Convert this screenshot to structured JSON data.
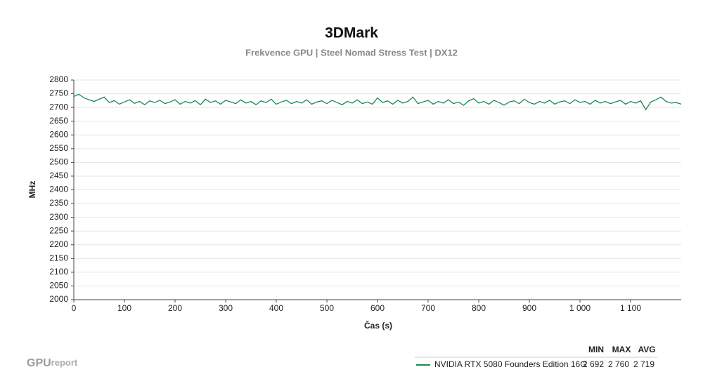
{
  "chart_data": {
    "type": "line",
    "title": "3DMark",
    "subtitle": "Frekvence GPU | Steel Nomad Stress Test | DX12",
    "x_label": "Čas (s)",
    "y_label": "MHz",
    "x": [
      0,
      10,
      20,
      30,
      40,
      50,
      60,
      70,
      80,
      90,
      100,
      110,
      120,
      130,
      140,
      150,
      160,
      170,
      180,
      190,
      200,
      210,
      220,
      230,
      240,
      250,
      260,
      270,
      280,
      290,
      300,
      310,
      320,
      330,
      340,
      350,
      360,
      370,
      380,
      390,
      400,
      410,
      420,
      430,
      440,
      450,
      460,
      470,
      480,
      490,
      500,
      510,
      520,
      530,
      540,
      550,
      560,
      570,
      580,
      590,
      600,
      610,
      620,
      630,
      640,
      650,
      660,
      670,
      680,
      690,
      700,
      710,
      720,
      730,
      740,
      750,
      760,
      770,
      780,
      790,
      800,
      810,
      820,
      830,
      840,
      850,
      860,
      870,
      880,
      890,
      900,
      910,
      920,
      930,
      940,
      950,
      960,
      970,
      980,
      990,
      1000,
      1010,
      1020,
      1030,
      1040,
      1050,
      1060,
      1070,
      1080,
      1090,
      1100,
      1110,
      1120,
      1130,
      1140,
      1150,
      1160,
      1170,
      1180,
      1190,
      1200
    ],
    "series": [
      {
        "name": "NVIDIA RTX 5080 Founders Edition 16G",
        "color": "#1a8a4f",
        "values": [
          2740,
          2748,
          2735,
          2728,
          2722,
          2730,
          2738,
          2718,
          2725,
          2712,
          2720,
          2728,
          2715,
          2722,
          2710,
          2724,
          2718,
          2726,
          2714,
          2720,
          2728,
          2712,
          2722,
          2716,
          2725,
          2710,
          2730,
          2718,
          2724,
          2712,
          2726,
          2720,
          2714,
          2728,
          2716,
          2722,
          2710,
          2724,
          2718,
          2730,
          2712,
          2720,
          2726,
          2714,
          2722,
          2716,
          2728,
          2712,
          2720,
          2724,
          2714,
          2726,
          2718,
          2710,
          2722,
          2716,
          2728,
          2714,
          2720,
          2712,
          2735,
          2718,
          2724,
          2712,
          2726,
          2716,
          2722,
          2738,
          2714,
          2720,
          2726,
          2712,
          2722,
          2716,
          2728,
          2714,
          2720,
          2708,
          2724,
          2732,
          2716,
          2722,
          2712,
          2726,
          2718,
          2708,
          2720,
          2724,
          2714,
          2730,
          2718,
          2712,
          2722,
          2716,
          2726,
          2712,
          2720,
          2724,
          2714,
          2728,
          2718,
          2722,
          2712,
          2726,
          2716,
          2722,
          2714,
          2720,
          2726,
          2712,
          2722,
          2716,
          2724,
          2692,
          2720,
          2728,
          2738,
          2722,
          2716,
          2718,
          2712
        ],
        "stats": [
          {
            "value": 2692,
            "label": "2 692"
          },
          {
            "value": 2760,
            "label": "2 760"
          },
          {
            "value": 2719,
            "label": "2 719"
          }
        ]
      }
    ],
    "stat_headers": [
      "MIN",
      "MAX",
      "AVG"
    ],
    "xlim": [
      0,
      1200
    ],
    "ylim": [
      2000,
      2800
    ],
    "xticks": [
      0,
      100,
      200,
      300,
      400,
      500,
      600,
      700,
      800,
      900,
      {
        "value": 1000,
        "label": "1 000"
      },
      {
        "value": 1100,
        "label": "1 100"
      }
    ],
    "yticks": [
      2000,
      2050,
      2100,
      2150,
      2200,
      2250,
      2300,
      2350,
      2400,
      2450,
      2500,
      2550,
      2600,
      2650,
      2700,
      2750,
      2800
    ],
    "grid": true,
    "logo": [
      "GPU",
      "report"
    ]
  }
}
